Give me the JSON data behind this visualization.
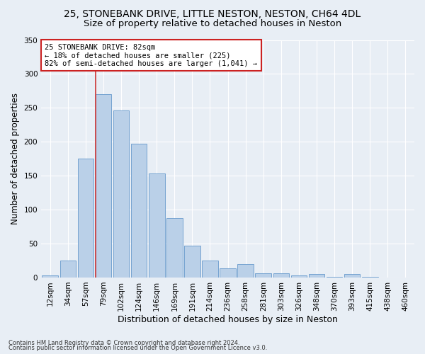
{
  "title": "25, STONEBANK DRIVE, LITTLE NESTON, NESTON, CH64 4DL",
  "subtitle": "Size of property relative to detached houses in Neston",
  "xlabel": "Distribution of detached houses by size in Neston",
  "ylabel": "Number of detached properties",
  "bar_color": "#bad0e8",
  "bar_edge_color": "#6699cc",
  "categories": [
    "12sqm",
    "34sqm",
    "57sqm",
    "79sqm",
    "102sqm",
    "124sqm",
    "146sqm",
    "169sqm",
    "191sqm",
    "214sqm",
    "236sqm",
    "258sqm",
    "281sqm",
    "303sqm",
    "326sqm",
    "348sqm",
    "370sqm",
    "393sqm",
    "415sqm",
    "438sqm",
    "460sqm"
  ],
  "values": [
    3,
    25,
    175,
    270,
    246,
    197,
    153,
    88,
    47,
    25,
    13,
    20,
    6,
    6,
    3,
    5,
    1,
    5,
    1,
    0,
    0
  ],
  "ylim": [
    0,
    350
  ],
  "yticks": [
    0,
    50,
    100,
    150,
    200,
    250,
    300,
    350
  ],
  "annotation_title": "25 STONEBANK DRIVE: 82sqm",
  "annotation_line1": "← 18% of detached houses are smaller (225)",
  "annotation_line2": "82% of semi-detached houses are larger (1,041) →",
  "footer1": "Contains HM Land Registry data © Crown copyright and database right 2024.",
  "footer2": "Contains public sector information licensed under the Open Government Licence v3.0.",
  "bg_color": "#e8eef5",
  "plot_bg_color": "#e8eef5",
  "title_fontsize": 10,
  "subtitle_fontsize": 9.5,
  "tick_fontsize": 7.5,
  "ylabel_fontsize": 8.5,
  "xlabel_fontsize": 9
}
